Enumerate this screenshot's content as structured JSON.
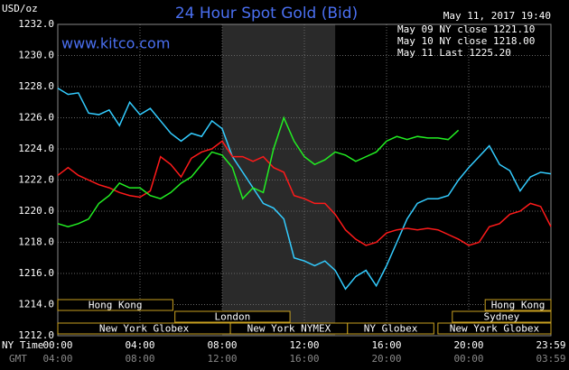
{
  "chart_data": {
    "type": "line",
    "title": "24 Hour Spot Gold (Bid)",
    "website": "www.kitco.com",
    "ylabel": "USD/oz",
    "timestamp": "May 11, 2017 19:40",
    "x_row_label": "NY Time",
    "gmt_row_label": "GMT",
    "x": [
      0,
      0.5,
      1,
      1.5,
      2,
      2.5,
      3,
      3.5,
      4,
      4.5,
      5,
      5.5,
      6,
      6.5,
      7,
      7.5,
      8,
      8.5,
      9,
      9.5,
      10,
      10.5,
      11,
      11.5,
      12,
      12.5,
      13,
      13.5,
      14,
      14.5,
      15,
      15.5,
      16,
      16.5,
      17,
      17.5,
      18,
      18.5,
      19,
      19.5,
      20,
      20.5,
      21,
      21.5,
      22,
      22.5,
      23,
      23.5,
      24
    ],
    "series": [
      {
        "name": "May 09 NY close 1221.10",
        "color": "#33ccff",
        "values": [
          1227.9,
          1227.5,
          1227.6,
          1226.3,
          1226.2,
          1226.5,
          1225.5,
          1227.0,
          1226.2,
          1226.6,
          1225.8,
          1225.0,
          1224.5,
          1225.0,
          1224.8,
          1225.8,
          1225.3,
          1223.5,
          1222.5,
          1221.5,
          1220.5,
          1220.2,
          1219.5,
          1217.0,
          1216.8,
          1216.5,
          1216.8,
          1216.2,
          1215.0,
          1215.8,
          1216.2,
          1215.2,
          1216.5,
          1218.0,
          1219.5,
          1220.5,
          1220.8,
          1220.8,
          1221.0,
          1222.0,
          1222.8,
          1223.5,
          1224.2,
          1223.0,
          1222.6,
          1221.3,
          1222.2,
          1222.5,
          1222.4
        ]
      },
      {
        "name": "May 10 NY close 1218.00",
        "color": "#ff1a1a",
        "values": [
          1222.3,
          1222.8,
          1222.3,
          1222.0,
          1221.7,
          1221.5,
          1221.2,
          1221.0,
          1220.9,
          1221.3,
          1223.5,
          1223.0,
          1222.2,
          1223.4,
          1223.8,
          1224.0,
          1224.5,
          1223.5,
          1223.5,
          1223.2,
          1223.5,
          1222.8,
          1222.5,
          1221.0,
          1220.8,
          1220.5,
          1220.5,
          1219.8,
          1218.8,
          1218.2,
          1217.8,
          1218.0,
          1218.6,
          1218.8,
          1218.9,
          1218.8,
          1218.9,
          1218.8,
          1218.5,
          1218.2,
          1217.8,
          1218.0,
          1219.0,
          1219.2,
          1219.8,
          1220.0,
          1220.5,
          1220.3,
          1219.0
        ]
      },
      {
        "name": "May 11 Last 1225.20",
        "color": "#22ee22",
        "values": [
          1219.2,
          1219.0,
          1219.2,
          1219.5,
          1220.5,
          1221.0,
          1221.8,
          1221.5,
          1221.5,
          1221.0,
          1220.8,
          1221.2,
          1221.8,
          1222.2,
          1223.0,
          1223.8,
          1223.6,
          1222.8,
          1220.8,
          1221.5,
          1221.2,
          1224.0,
          1226.0,
          1224.5,
          1223.5,
          1223.0,
          1223.3,
          1223.8,
          1223.6,
          1223.2,
          1223.5,
          1223.8,
          1224.5,
          1224.8,
          1224.6,
          1224.8,
          1224.7,
          1224.7,
          1224.6,
          1225.2,
          null,
          null,
          null,
          null,
          null,
          null,
          null,
          null,
          null
        ]
      }
    ],
    "xlim": [
      0,
      24
    ],
    "xticks": [
      {
        "value": 0,
        "label": "00:00"
      },
      {
        "value": 4,
        "label": "04:00"
      },
      {
        "value": 8,
        "label": "08:00"
      },
      {
        "value": 12,
        "label": "12:00"
      },
      {
        "value": 16,
        "label": "16:00"
      },
      {
        "value": 20,
        "label": "20:00"
      },
      {
        "value": 24,
        "label": "23:59"
      }
    ],
    "gmt_ticks": [
      "04:00",
      "08:00",
      "12:00",
      "16:00",
      "20:00",
      "00:00",
      "03:59"
    ],
    "ylim": [
      1212,
      1232
    ],
    "yticks": [
      {
        "value": 1212,
        "label": "1212.0"
      },
      {
        "value": 1214,
        "label": "1214.0"
      },
      {
        "value": 1216,
        "label": "1216.0"
      },
      {
        "value": 1218,
        "label": "1218.0"
      },
      {
        "value": 1220,
        "label": "1220.0"
      },
      {
        "value": 1222,
        "label": "1222.0"
      },
      {
        "value": 1224,
        "label": "1224.0"
      },
      {
        "value": 1226,
        "label": "1226.0"
      },
      {
        "value": 1228,
        "label": "1228.0"
      },
      {
        "value": 1230,
        "label": "1230.0"
      },
      {
        "value": 1232,
        "label": "1232.0"
      }
    ],
    "grid": true,
    "shaded_range": [
      8,
      13.5
    ],
    "sessions": [
      {
        "label": "Hong Kong",
        "start": 0,
        "end": 5.6,
        "row": 0
      },
      {
        "label": "Hong Kong",
        "start": 20.8,
        "end": 24,
        "row": 0
      },
      {
        "label": "London",
        "start": 5.7,
        "end": 11.3,
        "row": 1
      },
      {
        "label": "Sydney",
        "start": 19.2,
        "end": 24,
        "row": 1
      },
      {
        "label": "New York Globex",
        "start": 0,
        "end": 8.4,
        "row": 2
      },
      {
        "label": "New York NYMEX",
        "start": 8.4,
        "end": 14.1,
        "row": 2
      },
      {
        "label": "NY Globex",
        "start": 14.1,
        "end": 18.3,
        "row": 2
      },
      {
        "label": "New York Globex",
        "start": 18.5,
        "end": 24,
        "row": 2
      }
    ]
  }
}
